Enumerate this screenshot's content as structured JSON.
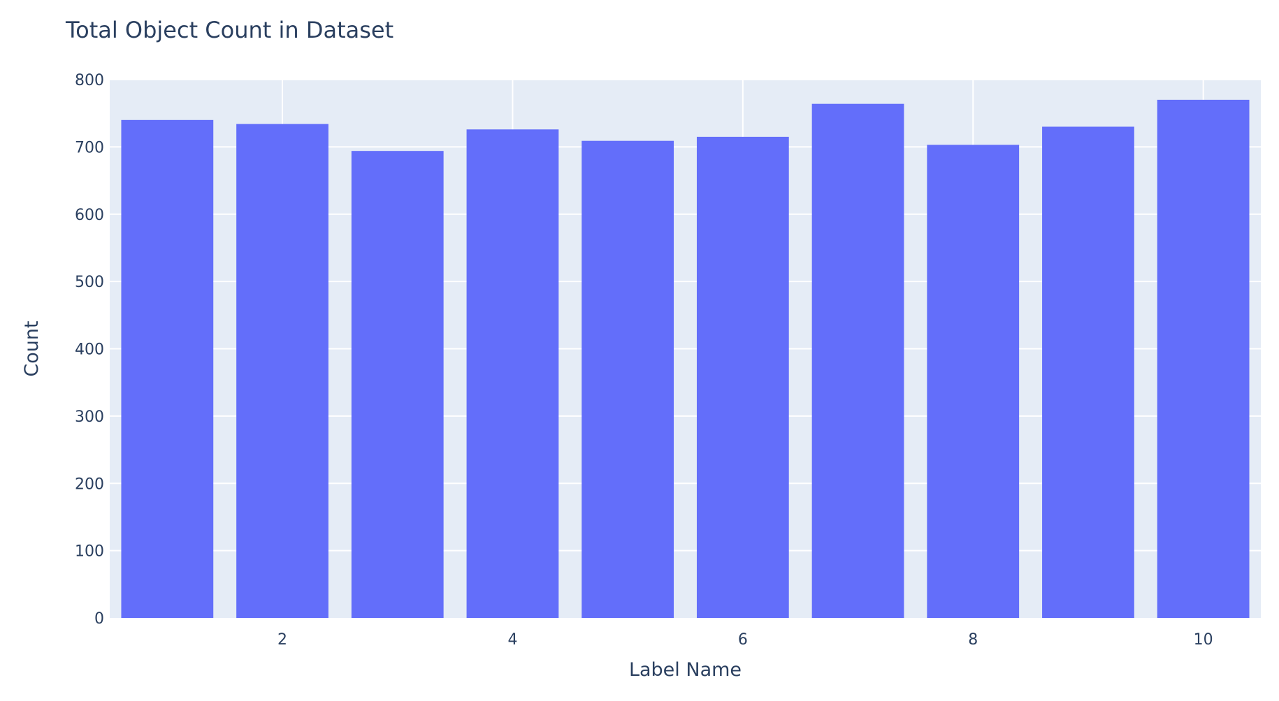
{
  "chart_data": {
    "type": "bar",
    "title": "Total Object Count in Dataset",
    "xlabel": "Label Name",
    "ylabel": "Count",
    "x": [
      1,
      2,
      3,
      4,
      5,
      6,
      7,
      8,
      9,
      10
    ],
    "values": [
      740,
      734,
      694,
      726,
      709,
      715,
      764,
      703,
      730,
      770
    ],
    "xlim": [
      0.5,
      10.5
    ],
    "ylim": [
      0,
      800
    ],
    "xticks": [
      2,
      4,
      6,
      8,
      10
    ],
    "yticks": [
      0,
      100,
      200,
      300,
      400,
      500,
      600,
      700,
      800
    ],
    "grid": true,
    "colors": {
      "bar": "#636efa",
      "plot_bg": "#e5ecf6",
      "grid": "#ffffff",
      "text": "#2a3f5f"
    }
  }
}
